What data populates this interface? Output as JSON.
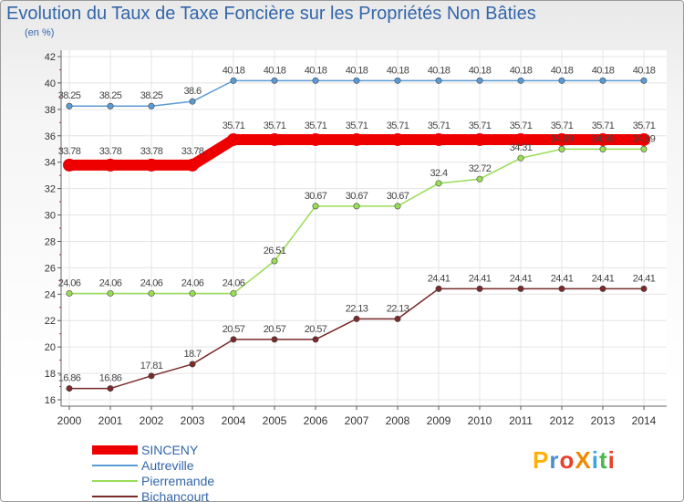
{
  "title": "Evolution du Taux de Taxe Foncière sur les Propriétés Non Bâties",
  "unit": "(en %)",
  "logo": {
    "text": "ProXiti",
    "colors": [
      "#ffb000",
      "#4a90d0",
      "#e8402a",
      "#f08a00",
      "#3aa6e0",
      "#4cb84c",
      "#e8402a"
    ]
  },
  "chart_data": {
    "type": "line",
    "title": "Evolution du Taux de Taxe Foncière sur les Propriétés Non Bâties",
    "ylabel": "(en %)",
    "xlabel": "",
    "ylim": [
      16,
      42
    ],
    "yticks": [
      16,
      18,
      20,
      22,
      24,
      26,
      28,
      30,
      32,
      34,
      36,
      38,
      40,
      42
    ],
    "x": [
      "2000",
      "2001",
      "2002",
      "2003",
      "2004",
      "2005",
      "2006",
      "2007",
      "2008",
      "2009",
      "2010",
      "2011",
      "2012",
      "2013",
      "2014"
    ],
    "series": [
      {
        "name": "SINCENY",
        "color": "#ee0000",
        "bold": true,
        "values": [
          33.78,
          33.78,
          33.78,
          33.78,
          35.71,
          35.71,
          35.71,
          35.71,
          35.71,
          35.71,
          35.71,
          35.71,
          35.71,
          35.71,
          35.71
        ],
        "labels": [
          "33.78",
          "33.78",
          "33.78",
          "33.78",
          "35.71",
          "35.71",
          "35.71",
          "35.71",
          "35.71",
          "35.71",
          "35.71",
          "35.71",
          "35.71",
          "35.71",
          "35.71"
        ]
      },
      {
        "name": "Autreville",
        "color": "#5b9bd5",
        "bold": false,
        "values": [
          38.25,
          38.25,
          38.25,
          38.6,
          40.18,
          40.18,
          40.18,
          40.18,
          40.18,
          40.18,
          40.18,
          40.18,
          40.18,
          40.18,
          40.18
        ],
        "labels": [
          "38.25",
          "38.25",
          "38.25",
          "38.6",
          "40.18",
          "40.18",
          "40.18",
          "40.18",
          "40.18",
          "40.18",
          "40.18",
          "40.18",
          "40.18",
          "40.18",
          "40.18"
        ]
      },
      {
        "name": "Pierremande",
        "color": "#99dd55",
        "bold": false,
        "values": [
          24.06,
          24.06,
          24.06,
          24.06,
          24.06,
          26.51,
          30.67,
          30.67,
          30.67,
          32.4,
          32.72,
          34.31,
          34.99,
          34.99,
          34.99
        ],
        "labels": [
          "24.06",
          "24.06",
          "24.06",
          "24.06",
          "24.06",
          "26.51",
          "30.67",
          "30.67",
          "30.67",
          "32.4",
          "32.72",
          "34.31",
          "34.99",
          "34.99",
          "34.99"
        ]
      },
      {
        "name": "Bichancourt",
        "color": "#7a2a2a",
        "bold": false,
        "values": [
          16.86,
          16.86,
          17.81,
          18.7,
          20.57,
          20.57,
          20.57,
          22.13,
          22.13,
          24.41,
          24.41,
          24.41,
          24.41,
          24.41,
          24.41
        ],
        "labels": [
          "16.86",
          "16.86",
          "17.81",
          "18.7",
          "20.57",
          "20.57",
          "20.57",
          "22.13",
          "22.13",
          "24.41",
          "24.41",
          "24.41",
          "24.41",
          "24.41",
          "24.41"
        ]
      }
    ],
    "legend": "bottom-left"
  }
}
